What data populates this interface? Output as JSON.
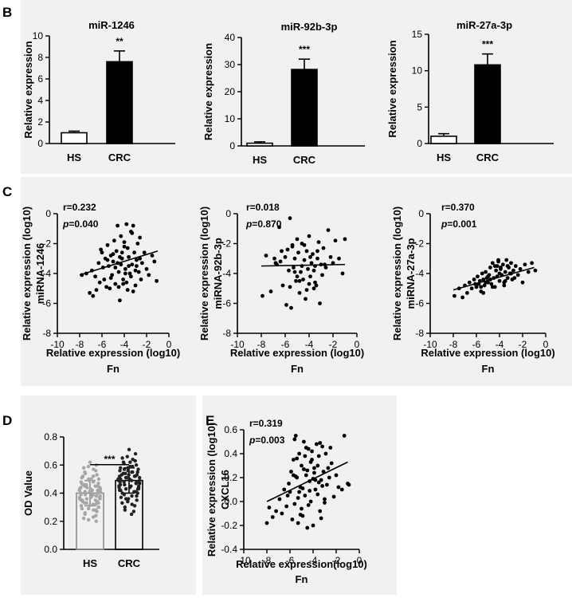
{
  "panel_labels": {
    "B": "B",
    "C": "C",
    "D": "D",
    "E": "E"
  },
  "chart_data": [
    {
      "id": "B1",
      "type": "bar",
      "title": "miR-1246",
      "categories": [
        "HS",
        "CRC"
      ],
      "values": [
        1.0,
        7.6
      ],
      "errors": [
        0.15,
        1.0
      ],
      "fills": [
        "#ffffff",
        "#000000"
      ],
      "significance": "**",
      "ylabel": "Relative expression",
      "xlabel": "",
      "ylim": [
        0,
        10
      ],
      "yticks": [
        0,
        2,
        4,
        6,
        8,
        10
      ]
    },
    {
      "id": "B2",
      "type": "bar",
      "title": "miR-92b-3p",
      "categories": [
        "HS",
        "CRC"
      ],
      "values": [
        1.0,
        28.2
      ],
      "errors": [
        0.5,
        3.8
      ],
      "fills": [
        "#ffffff",
        "#000000"
      ],
      "significance": "***",
      "ylabel": "Relative expression",
      "xlabel": "",
      "ylim": [
        0,
        40
      ],
      "yticks": [
        0,
        10,
        20,
        30,
        40
      ]
    },
    {
      "id": "B3",
      "type": "bar",
      "title": "miR-27a-3p",
      "categories": [
        "HS",
        "CRC"
      ],
      "values": [
        1.0,
        10.8
      ],
      "errors": [
        0.35,
        1.5
      ],
      "fills": [
        "#ffffff",
        "#000000"
      ],
      "significance": "***",
      "ylabel": "Relative expression",
      "xlabel": "",
      "ylim": [
        0,
        15
      ],
      "yticks": [
        0,
        5,
        10,
        15
      ]
    },
    {
      "id": "C1",
      "type": "scatter",
      "ylabel_lines": [
        "Relative expression (log10)",
        "miRNA-1246"
      ],
      "xlabel_lines": [
        "Relative expression (log10)",
        "Fn"
      ],
      "annotation_r": "r=0.232",
      "annotation_p_symbol": "p",
      "annotation_p_value": "=0.040",
      "xlim": [
        -10,
        0
      ],
      "ylim": [
        -8,
        0
      ],
      "xticks": [
        -10,
        -8,
        -6,
        -4,
        -2,
        0
      ],
      "yticks": [
        -8,
        -6,
        -4,
        -2,
        0
      ],
      "fit_line": {
        "x": [
          -8,
          -1
        ],
        "y": [
          -4.1,
          -2.5
        ]
      },
      "x": [
        -7.8,
        -7.4,
        -7.1,
        -6.9,
        -6.8,
        -6.6,
        -6.5,
        -6.3,
        -6.2,
        -6.0,
        -5.9,
        -5.8,
        -5.7,
        -5.6,
        -5.5,
        -5.4,
        -5.3,
        -5.2,
        -5.1,
        -5.0,
        -4.9,
        -4.8,
        -4.7,
        -4.6,
        -4.5,
        -4.4,
        -4.3,
        -4.2,
        -4.1,
        -4.0,
        -3.9,
        -3.8,
        -3.7,
        -3.6,
        -3.5,
        -3.4,
        -3.3,
        -3.2,
        -3.1,
        -3.0,
        -2.9,
        -2.8,
        -2.7,
        -2.6,
        -2.5,
        -2.4,
        -2.2,
        -2.0,
        -1.8,
        -1.5,
        -1.3,
        -1.1,
        -3.6,
        -4.2,
        -4.6,
        -3.0,
        -5.2,
        -4.4,
        -3.8,
        -2.6,
        -4.0,
        -5.0,
        -3.4,
        -4.8,
        -3.2,
        -4.1,
        -2.9,
        -3.7,
        -4.5,
        -5.5,
        -6.1,
        -3.9,
        -4.3,
        -3.3
      ],
      "y": [
        -4.1,
        -4.0,
        -5.3,
        -3.8,
        -5.5,
        -4.2,
        -5.1,
        -3.3,
        -4.6,
        -2.6,
        -3.6,
        -4.4,
        -3.0,
        -4.9,
        -2.1,
        -3.5,
        -5.0,
        -2.8,
        -4.1,
        -3.2,
        -1.8,
        -4.7,
        -2.5,
        -0.8,
        -3.9,
        -5.8,
        -1.5,
        -3.0,
        -4.4,
        -2.2,
        -3.7,
        -0.7,
        -5.1,
        -2.9,
        -4.0,
        -1.2,
        -3.4,
        -0.8,
        -2.6,
        -4.8,
        -3.1,
        -2.0,
        -3.9,
        -1.6,
        -4.4,
        -3.3,
        -2.6,
        -3.7,
        -4.1,
        -2.8,
        -3.2,
        -4.5,
        -3.5,
        -2.6,
        -3.3,
        -3.8,
        -4.3,
        -2.9,
        -4.6,
        -3.0,
        -1.9,
        -2.7,
        -4.2,
        -3.6,
        -5.2,
        -4.7,
        -3.5,
        -2.3,
        -4.9,
        -3.1,
        -2.4,
        -4.0,
        -3.4,
        -1.3
      ]
    },
    {
      "id": "C2",
      "type": "scatter",
      "ylabel_lines": [
        "Relative expression (log10)",
        "miRNA-92b-3p"
      ],
      "xlabel_lines": [
        "Relative expression (log10)",
        "Fn"
      ],
      "annotation_r": "r=0.018",
      "annotation_p_symbol": "p",
      "annotation_p_value": "=0.870",
      "xlim": [
        -10,
        0
      ],
      "ylim": [
        -8,
        0
      ],
      "xticks": [
        -10,
        -8,
        -6,
        -4,
        -2,
        0
      ],
      "yticks": [
        -8,
        -6,
        -4,
        -2,
        0
      ],
      "fit_line": {
        "x": [
          -8,
          -1
        ],
        "y": [
          -3.5,
          -3.4
        ]
      },
      "x": [
        -7.9,
        -7.6,
        -7.2,
        -6.9,
        -6.7,
        -6.5,
        -6.3,
        -6.2,
        -6.0,
        -5.9,
        -5.8,
        -5.7,
        -5.6,
        -5.5,
        -5.4,
        -5.3,
        -5.2,
        -5.1,
        -5.0,
        -4.9,
        -4.8,
        -4.7,
        -4.6,
        -4.5,
        -4.4,
        -4.3,
        -4.2,
        -4.1,
        -4.0,
        -3.9,
        -3.8,
        -3.7,
        -3.6,
        -3.5,
        -3.4,
        -3.3,
        -3.2,
        -3.1,
        -3.0,
        -2.9,
        -2.8,
        -2.6,
        -2.4,
        -2.2,
        -2.0,
        -1.8,
        -1.5,
        -1.2,
        -5.6,
        -4.8,
        -4.4,
        -3.6,
        -5.2,
        -4.0,
        -3.3,
        -6.4,
        -4.6,
        -3.9,
        -5.0,
        -4.2,
        -2.7,
        -3.5,
        -5.4,
        -6.8,
        -1.0
      ],
      "y": [
        -5.5,
        -2.8,
        -5.2,
        -3.0,
        -3.4,
        -0.9,
        -2.5,
        -4.8,
        -2.9,
        -6.1,
        -2.4,
        -3.8,
        -4.9,
        -6.3,
        -2.2,
        -3.6,
        -3.0,
        -4.5,
        -1.7,
        -2.6,
        -5.3,
        -3.9,
        -2.0,
        -4.4,
        -3.1,
        -5.7,
        -2.5,
        -3.7,
        -1.5,
        -4.2,
        -3.3,
        -2.7,
        -5.0,
        -3.5,
        -4.8,
        -3.0,
        -1.9,
        -6.0,
        -3.4,
        -4.1,
        -2.3,
        -3.6,
        -1.1,
        -2.9,
        -3.3,
        -1.8,
        -3.0,
        -4.0,
        -0.3,
        -4.5,
        -2.1,
        -3.8,
        -3.9,
        -4.7,
        -2.5,
        -3.2,
        -3.5,
        -2.9,
        -4.2,
        -5.1,
        -3.4,
        -4.6,
        -2.1,
        -3.3,
        -1.7
      ]
    },
    {
      "id": "C3",
      "type": "scatter",
      "ylabel_lines": [
        "Relative expression (log10)",
        "miRNA-27a-3p"
      ],
      "xlabel_lines": [
        "Relative expression (log10)",
        "Fn"
      ],
      "annotation_r": "r=0.370",
      "annotation_p_symbol": "p",
      "annotation_p_value": "=0.001",
      "xlim": [
        -10,
        0
      ],
      "ylim": [
        -8,
        0
      ],
      "xticks": [
        -10,
        -8,
        -6,
        -4,
        -2,
        0
      ],
      "yticks": [
        -8,
        -6,
        -4,
        -2,
        0
      ],
      "fit_line": {
        "x": [
          -8,
          -1
        ],
        "y": [
          -5.1,
          -3.6
        ]
      },
      "x": [
        -7.9,
        -7.5,
        -7.2,
        -7.0,
        -6.8,
        -6.6,
        -6.4,
        -6.2,
        -6.0,
        -5.9,
        -5.8,
        -5.7,
        -5.6,
        -5.5,
        -5.4,
        -5.3,
        -5.2,
        -5.1,
        -5.0,
        -4.9,
        -4.8,
        -4.7,
        -4.6,
        -4.5,
        -4.4,
        -4.3,
        -4.2,
        -4.1,
        -4.0,
        -3.9,
        -3.8,
        -3.7,
        -3.6,
        -3.5,
        -3.4,
        -3.3,
        -3.2,
        -3.1,
        -3.0,
        -2.9,
        -2.8,
        -2.6,
        -2.4,
        -2.2,
        -2.0,
        -1.8,
        -1.5,
        -1.2,
        -0.9,
        -5.6,
        -4.8,
        -4.4,
        -3.6,
        -5.2,
        -4.0,
        -3.3,
        -4.6,
        -3.9,
        -5.0,
        -4.2,
        -2.7,
        -3.5,
        -5.4,
        -6.1,
        -4.1,
        -3.0
      ],
      "y": [
        -5.5,
        -5.0,
        -5.6,
        -4.8,
        -5.3,
        -4.6,
        -5.0,
        -4.4,
        -4.9,
        -4.2,
        -4.7,
        -4.5,
        -5.2,
        -4.0,
        -4.4,
        -4.8,
        -3.9,
        -4.3,
        -4.6,
        -4.1,
        -3.6,
        -4.7,
        -3.3,
        -4.3,
        -4.9,
        -3.8,
        -4.2,
        -3.2,
        -4.5,
        -3.7,
        -4.1,
        -3.4,
        -4.6,
        -3.9,
        -3.1,
        -4.3,
        -3.6,
        -4.0,
        -3.3,
        -4.4,
        -3.8,
        -3.5,
        -4.1,
        -3.7,
        -4.6,
        -3.4,
        -3.9,
        -3.3,
        -3.8,
        -4.9,
        -4.4,
        -3.5,
        -4.8,
        -4.6,
        -4.0,
        -3.5,
        -4.9,
        -3.6,
        -4.2,
        -3.5,
        -4.3,
        -4.5,
        -5.3,
        -4.7,
        -3.1,
        -4.0
      ]
    },
    {
      "id": "D",
      "type": "bar",
      "title": "",
      "categories": [
        "HS",
        "CRC"
      ],
      "values": [
        0.4,
        0.49
      ],
      "errors": [
        0.09,
        0.09
      ],
      "bar_colors": [
        "#8c8c8c",
        "#000000"
      ],
      "significance": "***",
      "ylabel": "OD  Value",
      "xlabel": "",
      "ylim": [
        0,
        0.8
      ],
      "yticks": [
        "0.0",
        "0.2",
        "0.4",
        "0.6",
        "0.8"
      ],
      "points": [
        [
          0.62,
          0.6,
          0.59,
          0.58,
          0.57,
          0.56,
          0.55,
          0.54,
          0.53,
          0.52,
          0.51,
          0.5,
          0.5,
          0.49,
          0.48,
          0.48,
          0.47,
          0.46,
          0.46,
          0.45,
          0.45,
          0.44,
          0.44,
          0.43,
          0.43,
          0.42,
          0.42,
          0.41,
          0.41,
          0.4,
          0.4,
          0.4,
          0.39,
          0.39,
          0.38,
          0.38,
          0.37,
          0.37,
          0.36,
          0.36,
          0.35,
          0.35,
          0.34,
          0.34,
          0.33,
          0.33,
          0.32,
          0.31,
          0.31,
          0.3,
          0.29,
          0.29,
          0.28,
          0.27,
          0.26,
          0.25,
          0.24,
          0.23,
          0.22,
          0.21,
          0.2,
          0.41,
          0.43,
          0.39,
          0.37,
          0.45,
          0.35,
          0.42,
          0.38,
          0.47,
          0.33,
          0.44,
          0.4,
          0.36,
          0.5,
          0.3,
          0.46,
          0.52,
          0.32,
          0.28
        ],
        [
          0.71,
          0.68,
          0.66,
          0.65,
          0.64,
          0.63,
          0.62,
          0.61,
          0.6,
          0.59,
          0.58,
          0.58,
          0.57,
          0.56,
          0.56,
          0.55,
          0.55,
          0.54,
          0.53,
          0.53,
          0.52,
          0.52,
          0.51,
          0.51,
          0.5,
          0.5,
          0.49,
          0.49,
          0.48,
          0.48,
          0.47,
          0.47,
          0.46,
          0.46,
          0.45,
          0.45,
          0.44,
          0.44,
          0.43,
          0.43,
          0.42,
          0.41,
          0.41,
          0.4,
          0.39,
          0.38,
          0.38,
          0.37,
          0.36,
          0.35,
          0.34,
          0.33,
          0.32,
          0.31,
          0.3,
          0.28,
          0.27,
          0.25,
          0.49,
          0.51,
          0.47,
          0.53,
          0.45,
          0.55,
          0.43,
          0.57,
          0.5,
          0.48,
          0.52,
          0.46,
          0.54,
          0.44,
          0.59,
          0.42,
          0.62,
          0.4,
          0.36,
          0.5
        ]
      ]
    },
    {
      "id": "E",
      "type": "scatter",
      "ylabel_lines": [
        "Relative expression (log10)",
        "CXCL16"
      ],
      "xlabel_lines": [
        "Relative expression(log10)",
        "Fn"
      ],
      "annotation_r": "r=0.319",
      "annotation_p_symbol": "p",
      "annotation_p_value": "=0.003",
      "xlim": [
        -10,
        0
      ],
      "ylim": [
        -0.4,
        0.6
      ],
      "xticks": [
        -10,
        -8,
        -6,
        -4,
        -2,
        0
      ],
      "yticks": [
        "-0.4",
        "-0.2",
        "0.0",
        "0.2",
        "0.4",
        "0.6"
      ],
      "fit_line": {
        "x": [
          -8,
          -1
        ],
        "y": [
          0.0,
          0.33
        ]
      },
      "x": [
        -8.0,
        -7.8,
        -7.5,
        -7.2,
        -6.9,
        -6.7,
        -6.5,
        -6.3,
        -6.1,
        -6.0,
        -5.9,
        -5.8,
        -5.7,
        -5.6,
        -5.5,
        -5.4,
        -5.3,
        -5.2,
        -5.1,
        -5.0,
        -4.9,
        -4.8,
        -4.7,
        -4.6,
        -4.5,
        -4.4,
        -4.3,
        -4.2,
        -4.1,
        -4.0,
        -3.9,
        -3.8,
        -3.7,
        -3.6,
        -3.5,
        -3.4,
        -3.3,
        -3.2,
        -3.1,
        -3.0,
        -2.9,
        -2.8,
        -2.6,
        -2.4,
        -2.2,
        -2.0,
        -1.8,
        -1.5,
        -1.3,
        -1.0,
        -0.9,
        -5.6,
        -4.8,
        -4.4,
        -3.6,
        -5.2,
        -4.0,
        -3.3,
        -4.6,
        -3.9,
        -5.0,
        -4.2,
        -2.7,
        -3.5,
        -5.4,
        -6.2,
        -4.1,
        -3.0,
        -5.3,
        -4.5,
        -3.8,
        -4.9,
        -5.7,
        -3.4,
        -4.3,
        -2.5,
        -5.1,
        -4.7,
        -3.2,
        -5.5
      ],
      "y": [
        -0.18,
        -0.05,
        -0.13,
        -0.08,
        0.02,
        -0.1,
        0.1,
        -0.04,
        0.15,
        0.08,
        0.25,
        -0.15,
        0.35,
        -0.02,
        0.55,
        0.2,
        -0.18,
        0.4,
        0.12,
        0.3,
        -0.12,
        0.5,
        0.05,
        0.22,
        -0.22,
        0.44,
        0.17,
        0.0,
        0.35,
        -0.2,
        0.28,
        0.1,
        0.48,
        0.06,
        0.38,
        -0.08,
        0.18,
        0.46,
        0.25,
        0.02,
        0.4,
        0.14,
        0.2,
        0.32,
        0.04,
        0.22,
        0.12,
        0.1,
        0.55,
        0.15,
        0.14,
        0.52,
        0.27,
        -0.03,
        0.3,
        0.08,
        0.19,
        -0.14,
        0.45,
        0.24,
        -0.06,
        0.33,
        0.28,
        0.16,
        0.36,
        0.05,
        0.42,
        -0.01,
        0.03,
        0.26,
        0.18,
        0.11,
        0.22,
        0.49,
        0.09,
        0.45,
        -0.11,
        0.38,
        0.13,
        0.21
      ]
    }
  ]
}
